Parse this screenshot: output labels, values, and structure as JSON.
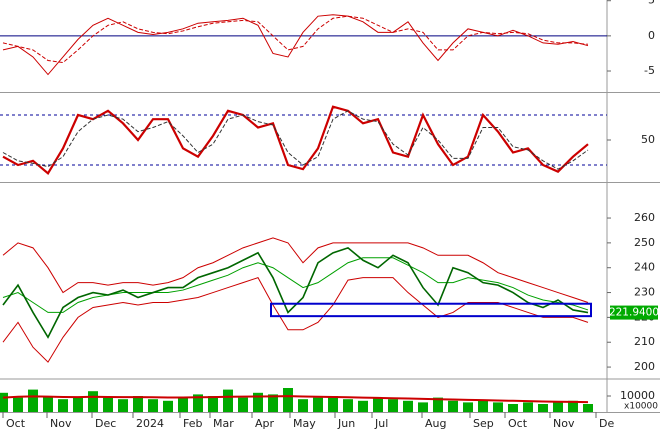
{
  "chart_data": [
    {
      "type": "line",
      "ylim": [
        -7.7,
        5.1
      ],
      "yticks": [
        5,
        0,
        -5
      ],
      "levels": [
        0
      ],
      "level_color": "#000080",
      "series": [
        {
          "color": "#cc0000",
          "dashed": false,
          "values": [
            -2,
            -1.5,
            -3,
            -5.5,
            -3,
            -0.5,
            1.5,
            2.5,
            1.5,
            0.5,
            0.2,
            0.5,
            1,
            1.8,
            2,
            2.2,
            2.5,
            1.5,
            -2.5,
            -3,
            0.5,
            2.8,
            3,
            2.8,
            2,
            0.5,
            0.5,
            2,
            -1,
            -3.5,
            -1,
            1,
            0.5,
            0,
            0.8,
            0,
            -1,
            -1.2,
            -0.8,
            -1.4
          ]
        },
        {
          "color": "#cc0000",
          "dashed": true,
          "values": [
            -1,
            -1.5,
            -2,
            -3.5,
            -3.8,
            -2,
            0,
            1.5,
            2,
            1,
            0.5,
            0.3,
            0.7,
            1.3,
            1.8,
            2,
            2.2,
            2,
            0,
            -2,
            -1.5,
            1,
            2.5,
            2.8,
            2.5,
            1.5,
            0.5,
            1,
            0.5,
            -2,
            -2,
            0,
            0.5,
            0.3,
            0.5,
            0.3,
            -0.6,
            -1,
            -1,
            -1.2
          ]
        }
      ]
    },
    {
      "type": "line",
      "ylim": [
        2,
        104
      ],
      "yticks": [
        50
      ],
      "levels": [
        20,
        80
      ],
      "level_color": "#000099",
      "series": [
        {
          "color": "#cc0000",
          "dashed": false,
          "width": 2.2,
          "values": [
            30,
            20,
            25,
            10,
            40,
            80,
            75,
            85,
            70,
            50,
            75,
            75,
            40,
            30,
            55,
            85,
            80,
            65,
            70,
            20,
            15,
            40,
            90,
            85,
            70,
            75,
            35,
            30,
            80,
            45,
            20,
            30,
            80,
            60,
            35,
            40,
            20,
            12,
            30,
            45
          ]
        },
        {
          "color": "#333333",
          "dashed": true,
          "values": [
            35,
            25,
            22,
            18,
            30,
            60,
            75,
            80,
            75,
            60,
            65,
            72,
            55,
            35,
            45,
            75,
            80,
            72,
            68,
            35,
            20,
            30,
            75,
            85,
            75,
            72,
            45,
            32,
            65,
            50,
            28,
            28,
            65,
            65,
            42,
            38,
            25,
            15,
            25,
            38
          ]
        }
      ]
    },
    {
      "type": "line",
      "ylim": [
        195.6,
        273.3
      ],
      "yticks": [
        200,
        210,
        220,
        230,
        240,
        250,
        260
      ],
      "support_zone": [
        220.5,
        225.5
      ],
      "last_price_label": "221.9400",
      "series": [
        {
          "color": "#cc0000",
          "values": [
            245,
            250,
            248,
            240,
            230,
            234,
            234,
            233,
            234,
            234,
            233,
            234,
            236,
            240,
            242,
            245,
            248,
            250,
            252,
            250,
            242,
            248,
            250,
            250,
            250,
            250,
            250,
            250,
            248,
            245,
            245,
            245,
            242,
            238,
            236,
            234,
            232,
            230,
            228,
            226
          ]
        },
        {
          "color": "#cc0000",
          "values": [
            210,
            218,
            208,
            202,
            212,
            220,
            224,
            225,
            226,
            225,
            226,
            226,
            227,
            228,
            230,
            232,
            234,
            236,
            225,
            215,
            215,
            218,
            225,
            235,
            236,
            236,
            236,
            230,
            225,
            220,
            222,
            226,
            226,
            226,
            224,
            222,
            220,
            220,
            220,
            218
          ]
        },
        {
          "color": "#00a000",
          "values": [
            228,
            230,
            226,
            222,
            222,
            226,
            228,
            229,
            230,
            230,
            230,
            230,
            231,
            233,
            235,
            237,
            240,
            242,
            240,
            236,
            232,
            234,
            238,
            242,
            244,
            244,
            244,
            241,
            238,
            234,
            234,
            236,
            235,
            234,
            232,
            229,
            227,
            226,
            225,
            223
          ]
        },
        {
          "color": "#006600",
          "width": 1.6,
          "values": [
            225,
            233,
            222,
            212,
            224,
            228,
            230,
            229,
            231,
            228,
            230,
            232,
            232,
            236,
            238,
            240,
            243,
            246,
            236,
            222,
            228,
            242,
            246,
            248,
            243,
            240,
            245,
            242,
            232,
            225,
            240,
            238,
            234,
            233,
            230,
            226,
            224,
            227,
            223,
            221.94
          ]
        }
      ]
    },
    {
      "type": "bar",
      "ylim": [
        0,
        20000
      ],
      "yticks": [
        10000
      ],
      "volume_unit": "x10000",
      "xtick_labels": [
        "Oct",
        "Nov",
        "Dec",
        "2024",
        "Feb",
        "Mar",
        "Apr",
        "May",
        "Jun",
        "Jul",
        "Aug",
        "Sep",
        "Oct",
        "Nov",
        "De"
      ],
      "color": "#00aa00",
      "values": [
        12000,
        9000,
        14000,
        10000,
        8000,
        9000,
        13000,
        9000,
        8000,
        10000,
        8000,
        7000,
        9000,
        11000,
        10000,
        14000,
        9000,
        12000,
        11000,
        15000,
        8000,
        9000,
        10000,
        8000,
        7000,
        9000,
        8000,
        7000,
        6000,
        9000,
        7000,
        6000,
        7000,
        6000,
        5000,
        6000,
        5000,
        6000,
        7000,
        5000
      ],
      "series": [
        {
          "color": "#cc0000",
          "width": 2,
          "values": [
            9000,
            9500,
            9800,
            9600,
            9400,
            9300,
            9500,
            9400,
            9300,
            9300,
            9200,
            9100,
            9100,
            9200,
            9300,
            9500,
            9600,
            9700,
            9800,
            9900,
            9700,
            9500,
            9400,
            9200,
            9000,
            8800,
            8600,
            8400,
            8200,
            8000,
            7800,
            7600,
            7400,
            7200,
            7000,
            6800,
            6600,
            6400,
            6300,
            6200
          ]
        }
      ]
    }
  ]
}
